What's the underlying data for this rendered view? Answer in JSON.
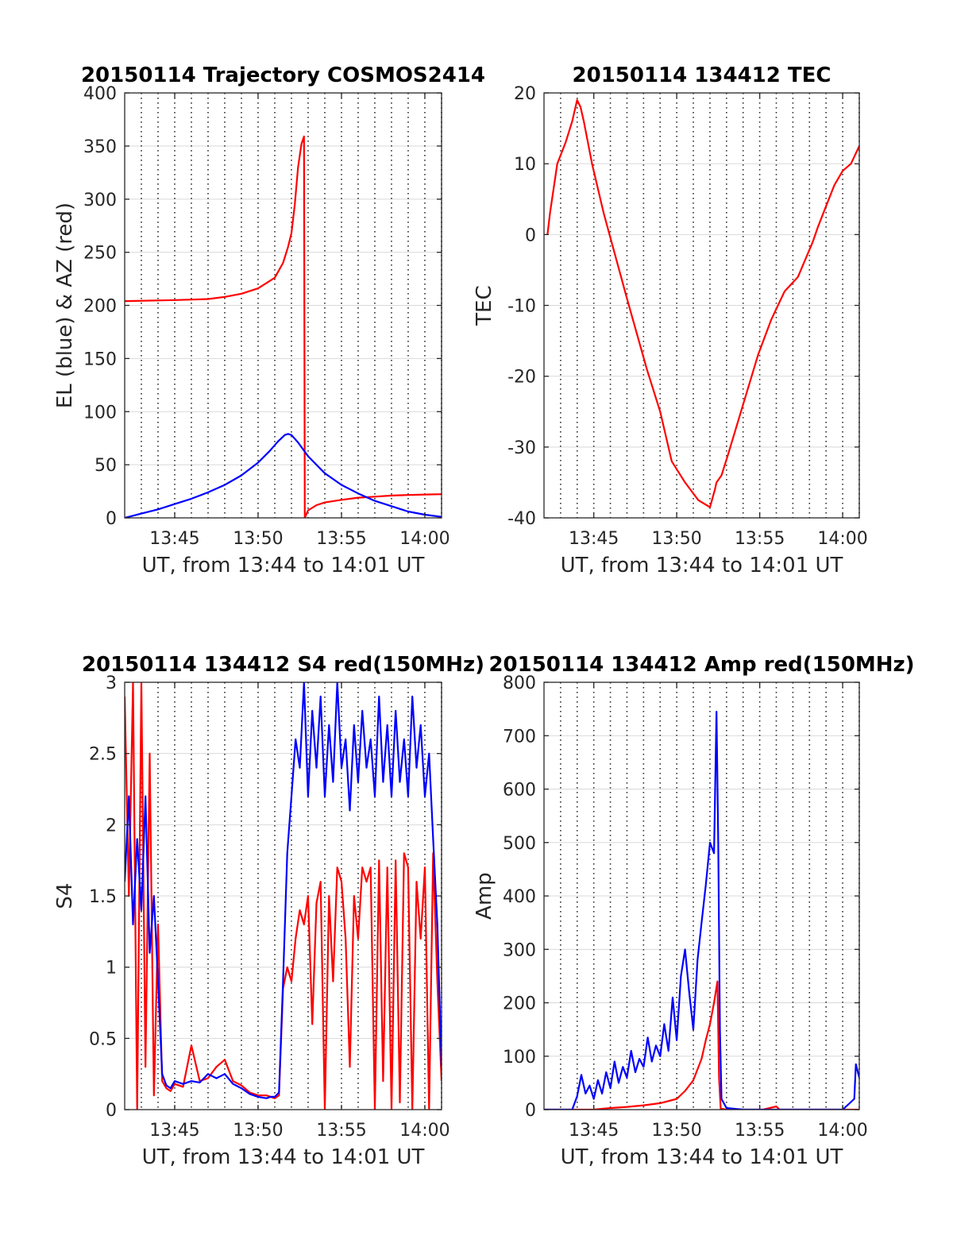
{
  "chart_data": [
    {
      "type": "line",
      "title": "20150114 Trajectory COSMOS2414",
      "xlabel": "UT, from 13:44 to 14:01 UT",
      "ylabel": "EL (blue) & AZ (red)",
      "xlim": [
        13.7,
        14.0167
      ],
      "ylim": [
        0,
        400
      ],
      "xticks": [
        13.75,
        13.8333,
        13.9167,
        14.0
      ],
      "xticklabels": [
        "13:45",
        "13:50",
        "13:55",
        "14:00"
      ],
      "yticks": [
        0,
        50,
        100,
        150,
        200,
        250,
        300,
        350,
        400
      ],
      "yticklabels": [
        "0",
        "50",
        "100",
        "150",
        "200",
        "250",
        "300",
        "350",
        "400"
      ],
      "grid": true,
      "series": [
        {
          "color": "#ff0000",
          "x": [
            13.7,
            13.75,
            13.7833,
            13.8,
            13.8167,
            13.8333,
            13.85,
            13.8583,
            13.8633,
            13.8667,
            13.87,
            13.8733,
            13.8767,
            13.8792,
            13.88,
            13.8833,
            13.8917,
            13.9,
            13.9167,
            13.9333,
            13.95,
            13.9667,
            13.9833,
            14.0,
            14.0167
          ],
          "values": [
            204,
            205,
            206,
            208,
            211,
            216,
            226,
            240,
            255,
            268,
            295,
            330,
            352,
            359,
            0,
            7,
            12,
            14.5,
            17,
            19,
            20,
            21,
            21.5,
            22,
            22.3
          ]
        },
        {
          "color": "#0000ff",
          "x": [
            13.7,
            13.7167,
            13.7333,
            13.75,
            13.7667,
            13.7833,
            13.8,
            13.8167,
            13.8333,
            13.845,
            13.8533,
            13.86,
            13.8633,
            13.8667,
            13.8733,
            13.8833,
            13.9,
            13.9167,
            13.9333,
            13.95,
            13.9667,
            13.9833,
            14.0,
            14.0167
          ],
          "values": [
            0,
            4,
            8,
            13,
            18,
            24,
            31,
            40,
            52,
            63,
            72,
            78,
            79,
            78,
            71,
            58,
            42,
            31,
            23,
            16,
            11,
            6,
            3,
            1
          ]
        }
      ]
    },
    {
      "type": "line",
      "title": "20150114 134412 TEC",
      "xlabel": "UT, from 13:44 to 14:01 UT",
      "ylabel": "TEC",
      "xlim": [
        13.7,
        14.0167
      ],
      "ylim": [
        -40,
        20
      ],
      "xticks": [
        13.75,
        13.8333,
        13.9167,
        14.0
      ],
      "xticklabels": [
        "13:45",
        "13:50",
        "13:55",
        "14:00"
      ],
      "yticks": [
        -40,
        -30,
        -20,
        -10,
        0,
        10,
        20
      ],
      "yticklabels": [
        "-40",
        "-30",
        "-20",
        "-10",
        "0",
        "10",
        "20"
      ],
      "grid": true,
      "series": [
        {
          "color": "#ff0000",
          "x": [
            13.7035,
            13.706,
            13.7133,
            13.7217,
            13.7283,
            13.7333,
            13.7367,
            13.74,
            13.7483,
            13.76,
            13.7833,
            13.8033,
            13.8167,
            13.8283,
            13.8417,
            13.855,
            13.8667,
            13.8717,
            13.8733,
            13.8783,
            13.885,
            13.9,
            13.915,
            13.9283,
            13.9417,
            13.955,
            13.97,
            13.975,
            13.9833,
            13.9917,
            14.0,
            14.0083,
            14.0167
          ],
          "values": [
            0,
            3,
            10,
            13,
            16,
            19,
            18,
            16,
            10,
            3,
            -9,
            -19,
            -25,
            -32,
            -35,
            -37.5,
            -38.5,
            -36,
            -35,
            -34,
            -31,
            -24,
            -17,
            -12,
            -8,
            -6,
            -1,
            1,
            4,
            7,
            9,
            10,
            12.5
          ]
        }
      ]
    },
    {
      "type": "line",
      "title": "20150114 134412 S4 red(150MHz)",
      "xlabel": "UT, from 13:44 to 14:01 UT",
      "ylabel": "S4",
      "xlim": [
        13.7,
        14.0167
      ],
      "ylim": [
        0,
        3
      ],
      "xticks": [
        13.75,
        13.8333,
        13.9167,
        14.0
      ],
      "xticklabels": [
        "13:45",
        "13:50",
        "13:55",
        "14:00"
      ],
      "yticks": [
        0,
        0.5,
        1,
        1.5,
        2,
        2.5,
        3
      ],
      "yticklabels": [
        "0",
        "0.5",
        "1",
        "1.5",
        "2",
        "2.5",
        "3"
      ],
      "grid": true,
      "series": [
        {
          "color": "#ff0000",
          "x": [
            13.7,
            13.7042,
            13.7083,
            13.7125,
            13.7167,
            13.7208,
            13.725,
            13.7292,
            13.7333,
            13.7375,
            13.7417,
            13.7458,
            13.75,
            13.7583,
            13.7667,
            13.775,
            13.7833,
            13.7917,
            13.8,
            13.8083,
            13.8167,
            13.825,
            13.8333,
            13.8417,
            13.8458,
            13.85,
            13.8542,
            13.8583,
            13.8625,
            13.8667,
            13.8708,
            13.875,
            13.8792,
            13.8833,
            13.8875,
            13.8917,
            13.8958,
            13.9,
            13.9042,
            13.9083,
            13.9125,
            13.9167,
            13.9208,
            13.925,
            13.9292,
            13.9333,
            13.9375,
            13.9417,
            13.9458,
            13.95,
            13.9542,
            13.9583,
            13.9625,
            13.9667,
            13.9708,
            13.975,
            13.9792,
            13.9833,
            13.9875,
            13.9917,
            13.9958,
            14.0,
            14.0042,
            14.0083,
            14.0125,
            14.0167
          ],
          "values": [
            2.9,
            1.5,
            3,
            0,
            3,
            0.3,
            2.5,
            0.1,
            1.3,
            0.2,
            0.15,
            0.13,
            0.18,
            0.16,
            0.45,
            0.2,
            0.22,
            0.3,
            0.35,
            0.2,
            0.17,
            0.12,
            0.1,
            0.1,
            0.09,
            0.08,
            0.1,
            0.85,
            1.0,
            0.9,
            1.2,
            1.4,
            1.3,
            1.5,
            0.6,
            1.45,
            1.6,
            0,
            1.5,
            0.9,
            1.7,
            1.6,
            1.2,
            0.3,
            1.5,
            1.2,
            1.7,
            1.6,
            1.7,
            0,
            1.75,
            0.2,
            1.7,
            0,
            1.75,
            0.05,
            1.8,
            1.7,
            0,
            1.6,
            1.2,
            1.7,
            0,
            1.8,
            0.9,
            0.2
          ]
        },
        {
          "color": "#0000ff",
          "x": [
            13.7,
            13.7042,
            13.7083,
            13.7125,
            13.7167,
            13.7208,
            13.725,
            13.7292,
            13.7333,
            13.7375,
            13.7417,
            13.7458,
            13.75,
            13.7583,
            13.7667,
            13.775,
            13.7833,
            13.7917,
            13.8,
            13.8083,
            13.8167,
            13.825,
            13.8333,
            13.8417,
            13.8458,
            13.85,
            13.8542,
            13.8583,
            13.8625,
            13.8667,
            13.8708,
            13.875,
            13.8792,
            13.8833,
            13.8875,
            13.8917,
            13.8958,
            13.9,
            13.9042,
            13.9083,
            13.9125,
            13.9167,
            13.9208,
            13.925,
            13.9292,
            13.9333,
            13.9375,
            13.9417,
            13.9458,
            13.95,
            13.9542,
            13.9583,
            13.9625,
            13.9667,
            13.9708,
            13.975,
            13.9792,
            13.9833,
            13.9875,
            13.9917,
            13.9958,
            14.0,
            14.0042,
            14.0083,
            14.0125,
            14.0167
          ],
          "values": [
            1.6,
            2.2,
            1.3,
            1.9,
            1.4,
            2.2,
            1.1,
            1.5,
            0.9,
            0.25,
            0.17,
            0.15,
            0.2,
            0.18,
            0.2,
            0.19,
            0.25,
            0.22,
            0.25,
            0.18,
            0.15,
            0.11,
            0.09,
            0.08,
            0.09,
            0.09,
            0.12,
            0.9,
            1.8,
            2.2,
            2.6,
            2.4,
            3,
            2.2,
            2.8,
            2.4,
            2.9,
            2.2,
            2.7,
            2.3,
            3,
            2.4,
            2.6,
            2.1,
            2.7,
            2.3,
            2.8,
            2.4,
            2.6,
            2.2,
            2.9,
            2.3,
            2.7,
            2.2,
            2.8,
            2.3,
            2.6,
            2.2,
            2.9,
            2.4,
            2.7,
            2.2,
            2.5,
            1.9,
            1.3,
            0.3
          ]
        }
      ]
    },
    {
      "type": "line",
      "title": "20150114 134412 Amp red(150MHz)",
      "xlabel": "UT, from 13:44 to 14:01 UT",
      "ylabel": "Amp",
      "xlim": [
        13.7,
        14.0167
      ],
      "ylim": [
        0,
        800
      ],
      "xticks": [
        13.75,
        13.8333,
        13.9167,
        14.0
      ],
      "xticklabels": [
        "13:45",
        "13:50",
        "13:55",
        "14:00"
      ],
      "yticks": [
        0,
        100,
        200,
        300,
        400,
        500,
        600,
        700,
        800
      ],
      "yticklabels": [
        "0",
        "100",
        "200",
        "300",
        "400",
        "500",
        "600",
        "700",
        "800"
      ],
      "grid": true,
      "series": [
        {
          "color": "#ff0000",
          "x": [
            13.7,
            13.75,
            13.7667,
            13.7833,
            13.8,
            13.8167,
            13.8333,
            13.8417,
            13.85,
            13.8583,
            13.8625,
            13.8667,
            13.8708,
            13.8742,
            13.8758,
            13.8775,
            13.8833,
            13.9,
            13.92,
            13.9333,
            13.9367,
            13.95,
            14.0,
            14.0167
          ],
          "values": [
            0,
            0,
            3,
            5,
            8,
            12,
            20,
            35,
            55,
            95,
            130,
            160,
            200,
            240,
            60,
            2,
            0,
            0,
            0,
            6,
            0,
            0,
            0,
            0
          ]
        },
        {
          "color": "#0000ff",
          "x": [
            13.7,
            13.7283,
            13.7333,
            13.7375,
            13.7417,
            13.7458,
            13.75,
            13.7542,
            13.7583,
            13.7625,
            13.7667,
            13.7708,
            13.775,
            13.7792,
            13.7833,
            13.7875,
            13.7917,
            13.7958,
            13.8,
            13.8042,
            13.8083,
            13.8125,
            13.8167,
            13.8208,
            13.825,
            13.8292,
            13.8333,
            13.8375,
            13.8417,
            13.8458,
            13.85,
            13.8542,
            13.8583,
            13.8625,
            13.8667,
            13.8708,
            13.8733,
            13.875,
            13.8767,
            13.8783,
            13.8833,
            13.9,
            13.95,
            14.0,
            14.0117,
            14.0133,
            14.0167
          ],
          "values": [
            0,
            0,
            25,
            65,
            30,
            45,
            20,
            55,
            30,
            70,
            40,
            90,
            50,
            80,
            60,
            110,
            70,
            95,
            80,
            135,
            90,
            120,
            100,
            160,
            110,
            210,
            130,
            250,
            300,
            220,
            150,
            280,
            350,
            420,
            500,
            480,
            745,
            500,
            150,
            20,
            3,
            0,
            0,
            0,
            20,
            85,
            60
          ]
        }
      ]
    }
  ]
}
